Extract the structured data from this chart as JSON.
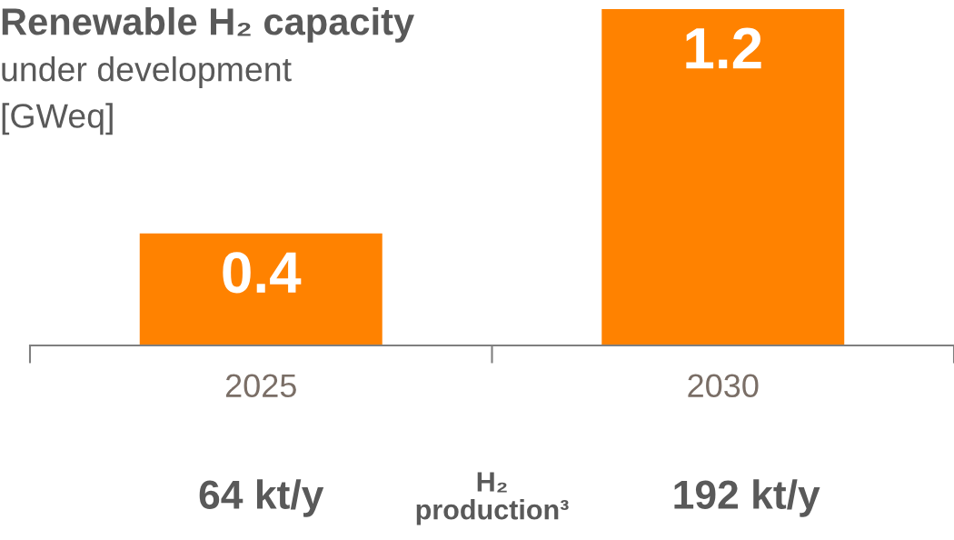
{
  "chart_data": {
    "type": "bar",
    "title": "Renewable H₂ capacity",
    "subtitle": "under development\n[GWeq]",
    "categories": [
      "2025",
      "2030"
    ],
    "series": [
      {
        "color": "#ff8200",
        "values": [
          0.4,
          1.2
        ]
      }
    ],
    "data_labels": true,
    "grid": false,
    "legend": false,
    "annotations": [
      "64 kt/y",
      "H₂\nproduction³",
      "192 kt/y"
    ]
  }
}
